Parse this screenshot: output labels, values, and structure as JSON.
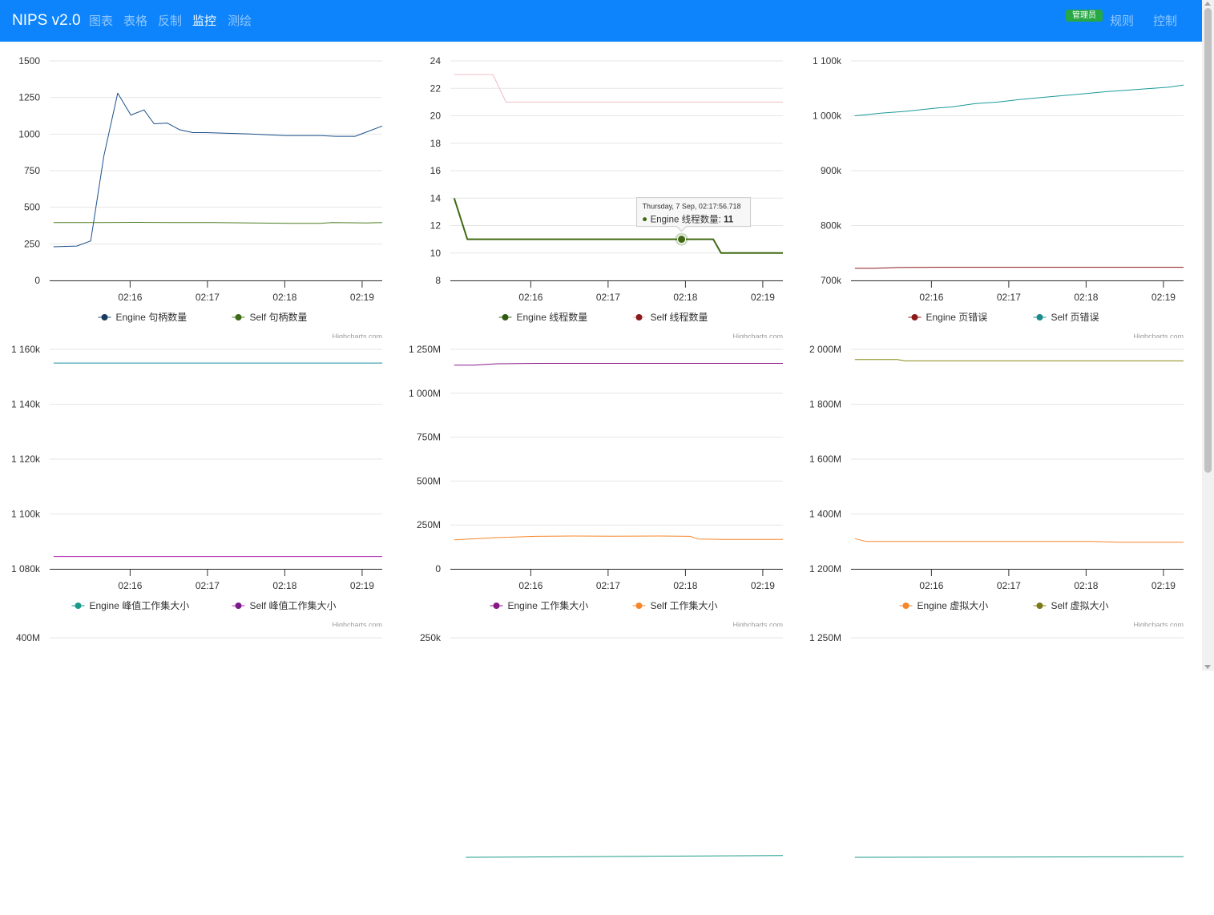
{
  "app": {
    "brand": "NIPS v2.0",
    "nav": [
      {
        "label": "图表",
        "active": false
      },
      {
        "label": "表格",
        "active": false
      },
      {
        "label": "反制",
        "active": false
      },
      {
        "label": "监控",
        "active": true
      },
      {
        "label": "测绘",
        "active": false
      }
    ],
    "role_badge": "管理员",
    "right_nav": [
      {
        "label": "规则"
      },
      {
        "label": "控制"
      }
    ],
    "colors": {
      "navbar": "#0d84fb",
      "badge": "#28a745"
    }
  },
  "credits": "Highcharts.com",
  "tooltip": {
    "header": "Thursday, 7 Sep, 02:17:56.718",
    "series": "Engine 线程数量",
    "value": "11"
  },
  "chart_data": [
    {
      "type": "line",
      "y_ticks": [
        "0",
        "250",
        "500",
        "750",
        "1000",
        "1250",
        "1500"
      ],
      "ylim": [
        0,
        1500
      ],
      "x_ticks": [
        "02:16",
        "02:17",
        "02:18",
        "02:19"
      ],
      "x_tick_values": [
        0.94,
        1.94,
        2.94,
        3.94
      ],
      "xlim": [
        -0.1,
        4.2
      ],
      "series": [
        {
          "name": "Engine 句柄数量",
          "color": "#1b4f8a",
          "marker": "#1b3a5c",
          "x": [
            -0.05,
            0.25,
            0.43,
            0.6,
            0.78,
            0.95,
            1.12,
            1.25,
            1.42,
            1.58,
            1.75,
            1.92,
            2.5,
            2.95,
            3.4,
            3.6,
            3.85,
            4.0,
            4.2
          ],
          "y": [
            230,
            235,
            270,
            850,
            1280,
            1130,
            1165,
            1070,
            1075,
            1030,
            1010,
            1010,
            1000,
            990,
            990,
            985,
            985,
            1015,
            1055
          ]
        },
        {
          "name": "Self 句柄数量",
          "color": "#4a7d1e",
          "marker": "#3d6b17",
          "x": [
            -0.05,
            0.5,
            1.0,
            1.5,
            2.0,
            2.5,
            3.0,
            3.4,
            3.55,
            4.0,
            4.2
          ],
          "y": [
            395,
            395,
            397,
            395,
            395,
            393,
            390,
            390,
            395,
            393,
            395
          ]
        }
      ]
    },
    {
      "type": "line",
      "y_ticks": [
        "8",
        "10",
        "12",
        "14",
        "16",
        "18",
        "20",
        "22",
        "24"
      ],
      "ylim": [
        8,
        24
      ],
      "x_ticks": [
        "02:16",
        "02:17",
        "02:18",
        "02:19"
      ],
      "x_tick_values": [
        0.94,
        1.94,
        2.94,
        3.94
      ],
      "xlim": [
        -0.1,
        4.2
      ],
      "hover_point": {
        "x": 2.89,
        "y": 11
      },
      "series": [
        {
          "name": "Engine 线程数量",
          "color": "#3f6a12",
          "marker": "#2f5a10",
          "x": [
            -0.05,
            0.12,
            0.5,
            1.0,
            1.5,
            2.0,
            2.5,
            2.89,
            3.0,
            3.3,
            3.4,
            4.2
          ],
          "y": [
            14,
            11,
            11,
            11,
            11,
            11,
            11,
            11,
            11,
            11,
            10,
            10
          ]
        },
        {
          "name": "Self 线程数量",
          "color": "#f0bcc6",
          "marker": "#8b1a1a",
          "x": [
            -0.05,
            0.45,
            0.62,
            1.0,
            2.0,
            3.0,
            4.2
          ],
          "y": [
            23,
            23,
            21,
            21,
            21,
            21,
            21
          ]
        }
      ]
    },
    {
      "type": "line",
      "y_ticks": [
        "700k",
        "800k",
        "900k",
        "1 000k",
        "1 100k"
      ],
      "ylim": [
        700000,
        1100000
      ],
      "x_ticks": [
        "02:16",
        "02:17",
        "02:18",
        "02:19"
      ],
      "x_tick_values": [
        0.94,
        1.94,
        2.94,
        3.94
      ],
      "xlim": [
        -0.1,
        4.2
      ],
      "series": [
        {
          "name": "Engine 页错误",
          "color": "#8b1a1a",
          "marker": "#8b1a1a",
          "x": [
            -0.05,
            0.2,
            0.5,
            1.0,
            2.0,
            3.0,
            4.2
          ],
          "y": [
            722000,
            722000,
            723500,
            724000,
            724000,
            724000,
            724000
          ]
        },
        {
          "name": "Self 页错误",
          "color": "#1a9a9a",
          "marker": "#1a8a8a",
          "x": [
            -0.05,
            0.3,
            0.6,
            1.0,
            1.2,
            1.5,
            1.8,
            2.1,
            2.5,
            2.9,
            3.2,
            3.6,
            4.0,
            4.2
          ],
          "y": [
            1000000,
            1005000,
            1008000,
            1014000,
            1016000,
            1022000,
            1025000,
            1030000,
            1035000,
            1040000,
            1044000,
            1048000,
            1052000,
            1056000
          ]
        }
      ]
    },
    {
      "type": "line",
      "y_ticks": [
        "1 080k",
        "1 100k",
        "1 120k",
        "1 140k",
        "1 160k"
      ],
      "ylim": [
        1080000,
        1160000
      ],
      "x_ticks": [
        "02:16",
        "02:17",
        "02:18",
        "02:19"
      ],
      "x_tick_values": [
        0.94,
        1.94,
        2.94,
        3.94
      ],
      "xlim": [
        -0.1,
        4.2
      ],
      "series": [
        {
          "name": "Engine 峰值工作集大小",
          "color": "#1a8fa0",
          "marker": "#1a9a8a",
          "x": [
            -0.05,
            4.2
          ],
          "y": [
            1155000,
            1155000
          ]
        },
        {
          "name": "Self 峰值工作集大小",
          "color": "#b02ab0",
          "marker": "#7a1a8a",
          "x": [
            -0.05,
            4.2
          ],
          "y": [
            1084500,
            1084500
          ]
        }
      ]
    },
    {
      "type": "line",
      "y_ticks": [
        "0",
        "250M",
        "500M",
        "750M",
        "1 000M",
        "1 250M"
      ],
      "ylim": [
        0,
        1250
      ],
      "x_ticks": [
        "02:16",
        "02:17",
        "02:18",
        "02:19"
      ],
      "x_tick_values": [
        0.94,
        1.94,
        2.94,
        3.94
      ],
      "xlim": [
        -0.1,
        4.2
      ],
      "series": [
        {
          "name": "Engine 工作集大小",
          "color": "#8a1a8a",
          "marker": "#8a1a8a",
          "x": [
            -0.05,
            0.2,
            0.5,
            1.0,
            2.0,
            3.0,
            4.2
          ],
          "y": [
            1160,
            1160,
            1168,
            1170,
            1170,
            1170,
            1170
          ]
        },
        {
          "name": "Self 工作集大小",
          "color": "#f7862a",
          "marker": "#f7862a",
          "x": [
            -0.05,
            0.5,
            1.0,
            1.5,
            2.0,
            2.6,
            3.0,
            3.1,
            3.4,
            4.2
          ],
          "y": [
            165,
            178,
            185,
            187,
            186,
            187,
            185,
            170,
            168,
            168
          ]
        }
      ]
    },
    {
      "type": "line",
      "y_ticks": [
        "1 200M",
        "1 400M",
        "1 600M",
        "1 800M",
        "2 000M"
      ],
      "ylim": [
        1200,
        2000
      ],
      "x_ticks": [
        "02:16",
        "02:17",
        "02:18",
        "02:19"
      ],
      "x_tick_values": [
        0.94,
        1.94,
        2.94,
        3.94
      ],
      "xlim": [
        -0.1,
        4.2
      ],
      "series": [
        {
          "name": "Engine 虚拟大小",
          "color": "#f7862a",
          "marker": "#f7862a",
          "x": [
            -0.05,
            0.1,
            0.5,
            1.0,
            2.0,
            3.0,
            3.4,
            4.2
          ],
          "y": [
            1310,
            1300,
            1300,
            1300,
            1300,
            1300,
            1297,
            1297
          ]
        },
        {
          "name": "Self 虚拟大小",
          "color": "#8a8a1a",
          "marker": "#7a7a1a",
          "x": [
            -0.05,
            0.5,
            0.6,
            1.0,
            2.0,
            3.0,
            4.2
          ],
          "y": [
            1963,
            1963,
            1958,
            1958,
            1958,
            1958,
            1958
          ]
        }
      ]
    },
    {
      "type": "line",
      "y_ticks": [
        "400M"
      ],
      "ylim": [
        0,
        400
      ],
      "x_ticks": [],
      "x_tick_values": [],
      "xlim": [
        -0.1,
        4.2
      ],
      "series": []
    },
    {
      "type": "line",
      "y_ticks": [
        "250k"
      ],
      "ylim": [
        0,
        250
      ],
      "x_ticks": [],
      "x_tick_values": [],
      "xlim": [
        -0.1,
        4.2
      ],
      "series": [
        {
          "name": "",
          "color": "#1a9a8a",
          "marker": "#1a9a8a",
          "x": [
            0.1,
            4.2
          ],
          "y": [
            0,
            2
          ]
        }
      ]
    },
    {
      "type": "line",
      "y_ticks": [
        "1 250M"
      ],
      "ylim": [
        0,
        1250
      ],
      "x_ticks": [],
      "x_tick_values": [],
      "xlim": [
        -0.1,
        4.2
      ],
      "series": [
        {
          "name": "",
          "color": "#1a9a8a",
          "marker": "#1a9a8a",
          "x": [
            -0.05,
            4.2
          ],
          "y": [
            0,
            3
          ]
        }
      ]
    }
  ]
}
